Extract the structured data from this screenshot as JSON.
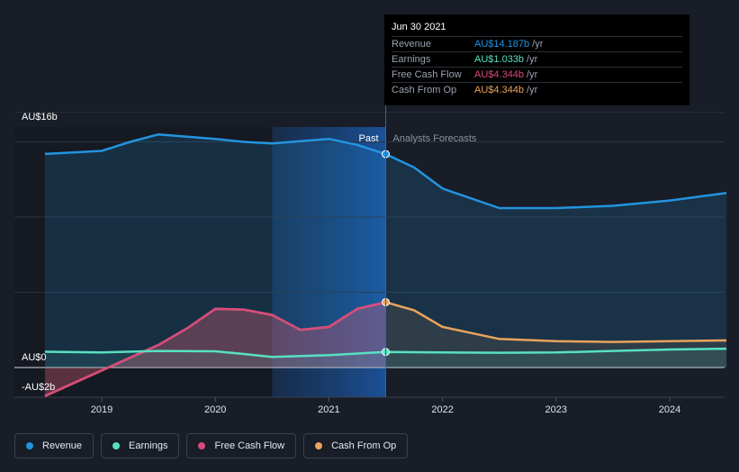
{
  "chart_data": {
    "type": "area",
    "currency_unit": "AU$",
    "y_axis_labels": {
      "top": "AU$16b",
      "zero": "AU$0",
      "bottom": "-AU$2b"
    },
    "ylim": [
      -2,
      16
    ],
    "x_ticks": [
      "2019",
      "2020",
      "2021",
      "2022",
      "2023",
      "2024"
    ],
    "region_labels": {
      "past": "Past",
      "forecast": "Analysts Forecasts"
    },
    "series": [
      {
        "name": "Revenue",
        "color": "#2394df",
        "x": [
          2018.5,
          2018.75,
          2019.0,
          2019.25,
          2019.5,
          2019.75,
          2020.0,
          2020.25,
          2020.5,
          2020.75,
          2021.0,
          2021.25,
          2021.5,
          2021.75,
          2022.0,
          2022.5,
          2023.0,
          2023.5,
          2024.0,
          2024.5
        ],
        "values": [
          14.2,
          14.3,
          14.4,
          15.0,
          15.5,
          15.35,
          15.2,
          15.0,
          14.9,
          15.05,
          15.2,
          14.8,
          14.187,
          13.3,
          11.9,
          10.6,
          10.6,
          10.75,
          11.1,
          11.6
        ]
      },
      {
        "name": "Earnings",
        "color": "#58e1c1",
        "x": [
          2018.5,
          2019.0,
          2019.5,
          2020.0,
          2020.25,
          2020.5,
          2021.0,
          2021.5,
          2022.0,
          2022.5,
          2023.0,
          2023.5,
          2024.0,
          2024.5
        ],
        "values": [
          1.05,
          1.0,
          1.1,
          1.08,
          0.9,
          0.7,
          0.82,
          1.033,
          1.0,
          0.98,
          1.0,
          1.1,
          1.2,
          1.25
        ]
      },
      {
        "name": "Free Cash Flow",
        "color": "#d94a7c",
        "x": [
          2018.5,
          2019.0,
          2019.5,
          2019.75,
          2020.0,
          2020.25,
          2020.5,
          2020.75,
          2021.0,
          2021.25,
          2021.5
        ],
        "values": [
          -1.9,
          -0.2,
          1.5,
          2.6,
          3.9,
          3.85,
          3.5,
          2.5,
          2.7,
          3.9,
          4.344
        ]
      },
      {
        "name": "Cash From Op",
        "color": "#e9a35c",
        "x": [
          2018.5,
          2019.0,
          2019.5,
          2019.75,
          2020.0,
          2020.25,
          2020.5,
          2020.75,
          2021.0,
          2021.25,
          2021.5,
          2021.75,
          2022.0,
          2022.5,
          2023.0,
          2023.5,
          2024.0,
          2024.5
        ],
        "values": [
          -1.9,
          -0.2,
          1.5,
          2.6,
          3.9,
          3.85,
          3.5,
          2.5,
          2.7,
          3.9,
          4.344,
          3.8,
          2.7,
          1.9,
          1.75,
          1.7,
          1.75,
          1.8
        ]
      }
    ],
    "legend_placement": "bottom-left",
    "grid": true
  },
  "tooltip": {
    "date": "Jun 30 2021",
    "rows": [
      {
        "name": "Revenue",
        "value": "AU$14.187b",
        "unit": "/yr",
        "color": "#2394df"
      },
      {
        "name": "Earnings",
        "value": "AU$1.033b",
        "unit": "/yr",
        "color": "#58e1c1"
      },
      {
        "name": "Free Cash Flow",
        "value": "AU$4.344b",
        "unit": "/yr",
        "color": "#d94a7c"
      },
      {
        "name": "Cash From Op",
        "value": "AU$4.344b",
        "unit": "/yr",
        "color": "#e9a35c"
      }
    ]
  },
  "legend": [
    {
      "label": "Revenue",
      "color": "#2394df"
    },
    {
      "label": "Earnings",
      "color": "#58e1c1"
    },
    {
      "label": "Free Cash Flow",
      "color": "#d94a7c"
    },
    {
      "label": "Cash From Op",
      "color": "#e9a35c"
    }
  ]
}
